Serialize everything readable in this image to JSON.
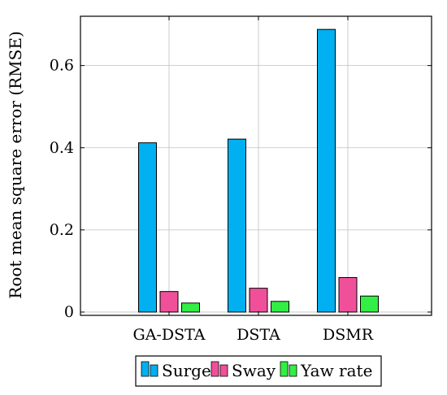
{
  "chart_data": {
    "type": "bar",
    "categories": [
      "GA-DSTA",
      "DSTA",
      "DSMR"
    ],
    "series": [
      {
        "name": "Surge",
        "values": [
          0.412,
          0.421,
          0.688
        ],
        "color": "#00b0f0"
      },
      {
        "name": "Sway",
        "values": [
          0.05,
          0.058,
          0.084
        ],
        "color": "#f0509a"
      },
      {
        "name": "Yaw rate",
        "values": [
          0.022,
          0.026,
          0.039
        ],
        "color": "#33ee44"
      }
    ],
    "ylabel": "Root mean square error (RMSE)",
    "xlabel": "",
    "yticks": [
      0,
      0.2,
      0.4,
      0.6
    ],
    "ytick_labels": [
      "0",
      "0.2",
      "0.4",
      "0.6"
    ],
    "ylim": [
      -0.008,
      0.72
    ],
    "grid": true,
    "legend_position": "bottom"
  }
}
